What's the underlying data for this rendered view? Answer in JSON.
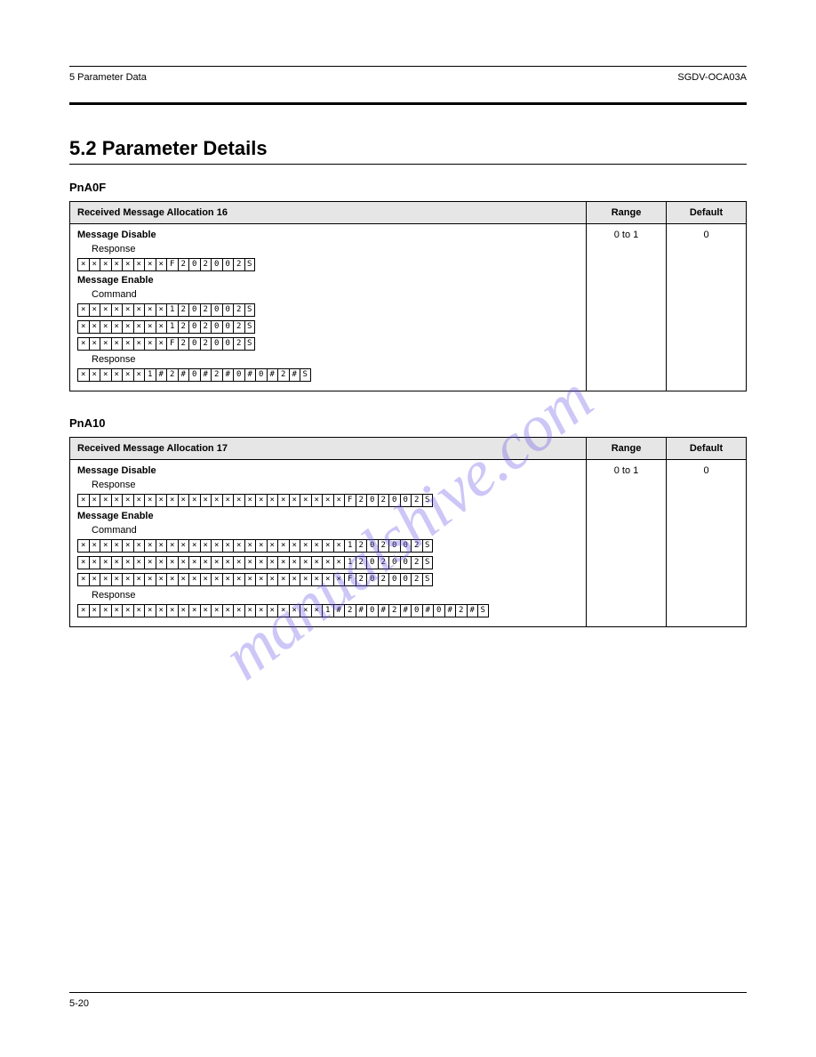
{
  "header": {
    "left": "5  Parameter Data",
    "right": "SGDV-OCA03A"
  },
  "section": {
    "title": "5.2  Parameter Details"
  },
  "tables": [
    {
      "id": "pna00f",
      "title": "PnA0F",
      "headers": [
        "Received Message Allocation 16",
        "Range",
        "Default"
      ],
      "range": "0 to 1",
      "default": "0",
      "params": [
        {
          "label": "Message Disable",
          "sublabel": "Response",
          "rows": [
            {
              "prefix": "",
              "cells": [
                "×",
                "×",
                "×",
                "×",
                "×",
                "×",
                "×",
                "×",
                "F",
                "2",
                "0",
                "2",
                "0",
                "0",
                "2",
                "S"
              ]
            }
          ]
        },
        {
          "label": "Message Enable",
          "sublabel": "Command",
          "rows": [
            {
              "prefix": "",
              "cells": [
                "×",
                "×",
                "×",
                "×",
                "×",
                "×",
                "×",
                "×",
                "1",
                "2",
                "0",
                "2",
                "0",
                "0",
                "2",
                "S"
              ]
            },
            {
              "prefix": "",
              "cells": [
                "×",
                "×",
                "×",
                "×",
                "×",
                "×",
                "×",
                "×",
                "1",
                "2",
                "0",
                "2",
                "0",
                "0",
                "2",
                "S"
              ]
            },
            {
              "prefix": "",
              "cells": [
                "×",
                "×",
                "×",
                "×",
                "×",
                "×",
                "×",
                "×",
                "F",
                "2",
                "0",
                "2",
                "0",
                "0",
                "2",
                "S"
              ]
            }
          ]
        },
        {
          "label": "",
          "sublabel": "Response",
          "rows": [
            {
              "prefix": "",
              "cells": [
                "×",
                "×",
                "×",
                "×",
                "×",
                "×",
                "1",
                "#",
                "2",
                "#",
                "0",
                "#",
                "2",
                "#",
                "0",
                "#",
                "0",
                "#",
                "2",
                "#",
                "S"
              ]
            }
          ]
        }
      ]
    },
    {
      "id": "pna10",
      "title": "PnA10",
      "headers": [
        "Received Message Allocation 17",
        "Range",
        "Default"
      ],
      "range": "0 to 1",
      "default": "0",
      "params": [
        {
          "label": "Message Disable",
          "sublabel": "Response",
          "rows": [
            {
              "prefix": "",
              "cells": [
                "×",
                "×",
                "×",
                "×",
                "×",
                "×",
                "×",
                "×",
                "×",
                "×",
                "×",
                "×",
                "×",
                "×",
                "×",
                "×",
                "×",
                "×",
                "×",
                "×",
                "×",
                "×",
                "×",
                "×",
                "F",
                "2",
                "0",
                "2",
                "0",
                "0",
                "2",
                "S"
              ]
            }
          ]
        },
        {
          "label": "Message Enable",
          "sublabel": "Command",
          "rows": [
            {
              "prefix": "",
              "cells": [
                "×",
                "×",
                "×",
                "×",
                "×",
                "×",
                "×",
                "×",
                "×",
                "×",
                "×",
                "×",
                "×",
                "×",
                "×",
                "×",
                "×",
                "×",
                "×",
                "×",
                "×",
                "×",
                "×",
                "×",
                "1",
                "2",
                "0",
                "2",
                "0",
                "0",
                "2",
                "S"
              ]
            },
            {
              "prefix": "",
              "cells": [
                "×",
                "×",
                "×",
                "×",
                "×",
                "×",
                "×",
                "×",
                "×",
                "×",
                "×",
                "×",
                "×",
                "×",
                "×",
                "×",
                "×",
                "×",
                "×",
                "×",
                "×",
                "×",
                "×",
                "×",
                "1",
                "2",
                "0",
                "2",
                "0",
                "0",
                "2",
                "S"
              ]
            },
            {
              "prefix": "",
              "cells": [
                "×",
                "×",
                "×",
                "×",
                "×",
                "×",
                "×",
                "×",
                "×",
                "×",
                "×",
                "×",
                "×",
                "×",
                "×",
                "×",
                "×",
                "×",
                "×",
                "×",
                "×",
                "×",
                "×",
                "×",
                "F",
                "2",
                "0",
                "2",
                "0",
                "0",
                "2",
                "S"
              ]
            }
          ]
        },
        {
          "label": "",
          "sublabel": "Response",
          "rows": [
            {
              "prefix": "",
              "cells": [
                "×",
                "×",
                "×",
                "×",
                "×",
                "×",
                "×",
                "×",
                "×",
                "×",
                "×",
                "×",
                "×",
                "×",
                "×",
                "×",
                "×",
                "×",
                "×",
                "×",
                "×",
                "×",
                "1",
                "#",
                "2",
                "#",
                "0",
                "#",
                "2",
                "#",
                "0",
                "#",
                "0",
                "#",
                "2",
                "#",
                "S"
              ]
            }
          ]
        }
      ]
    }
  ],
  "watermark": "manualshive.com",
  "footer": {
    "left": "5-20",
    "right": ""
  }
}
